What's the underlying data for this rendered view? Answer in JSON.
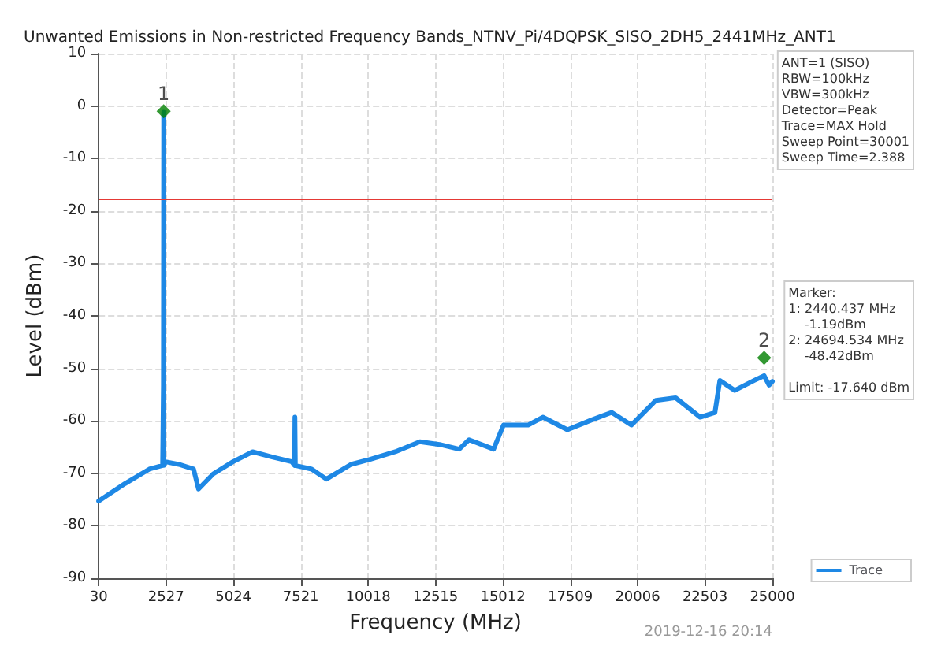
{
  "chart_data": {
    "type": "line",
    "title": "Unwanted Emissions in Non-restricted Frequency Bands_NTNV_Pi/4DQPSK_SISO_2DH5_2441MHz_ANT1",
    "xlabel": "Frequency (MHz)",
    "ylabel": "Level (dBm)",
    "xlim": [
      30,
      25000
    ],
    "xticks": [
      30,
      2527,
      5024,
      7521,
      10018,
      12515,
      15012,
      17509,
      20006,
      22503,
      25000
    ],
    "ylim": [
      -90,
      10
    ],
    "yticks": [
      -90,
      -80,
      -70,
      -60,
      -50,
      -40,
      -30,
      -20,
      -10,
      0,
      10
    ],
    "grid": true,
    "legend": "bottom right",
    "line_style": "solid",
    "series": [
      {
        "name": "Trace",
        "color": "#1e88e5",
        "marker": "none",
        "x": [
          30,
          996,
          1908,
          2400,
          2430,
          2440.437,
          2450,
          2509,
          3001,
          3548,
          3731,
          4278,
          5007,
          5736,
          6465,
          7194,
          7290,
          7303,
          7320,
          7924,
          8471,
          9382,
          10111,
          11023,
          11934,
          12663,
          13393,
          13757,
          14669,
          15033,
          15945,
          16492,
          17403,
          18315,
          19044,
          19773,
          20685,
          21414,
          22325,
          22872,
          23054,
          23601,
          24331,
          24695,
          24877,
          25000
        ],
        "values": [
          -75.3,
          -72.0,
          -69.2,
          -68.5,
          -53.2,
          -1.2,
          -68.5,
          -67.8,
          -68.3,
          -69.2,
          -73.0,
          -70.1,
          -67.8,
          -65.9,
          -66.9,
          -67.8,
          -68.5,
          -59.3,
          -68.5,
          -69.2,
          -71.1,
          -68.3,
          -67.3,
          -65.9,
          -64.0,
          -64.5,
          -65.4,
          -63.6,
          -65.4,
          -60.8,
          -60.8,
          -59.3,
          -61.7,
          -59.8,
          -58.4,
          -60.8,
          -56.1,
          -55.6,
          -59.3,
          -58.4,
          -52.3,
          -54.2,
          -52.3,
          -51.4,
          -53.2,
          -52.5
        ]
      },
      {
        "type": "scatter",
        "color": "#008000",
        "marker": "diamond",
        "x": [
          2440,
          24695
        ],
        "values": [
          -1,
          -48
        ]
      }
    ],
    "ref_lines": [
      {
        "axis": "y",
        "value": -17.64,
        "color": "#e53935"
      }
    ],
    "annotations": [
      {
        "text": "1",
        "x": 2440,
        "y": -1
      },
      {
        "text": "2",
        "x": 24695,
        "y": -48
      },
      "ANT=1 (SISO)\nRBW=100kHz\nVBW=300kHz\nDetector=Peak\nTrace=MAX Hold\nSweep Point=30001\nSweep Time=2.388",
      "Marker:\n1: 2440.437 MHz\n    -1.19dBm\n2: 24694.534 MHz\n    -48.42dBm\n\nLimit: -17.640 dBm",
      "2019-12-16 20:14"
    ]
  }
}
